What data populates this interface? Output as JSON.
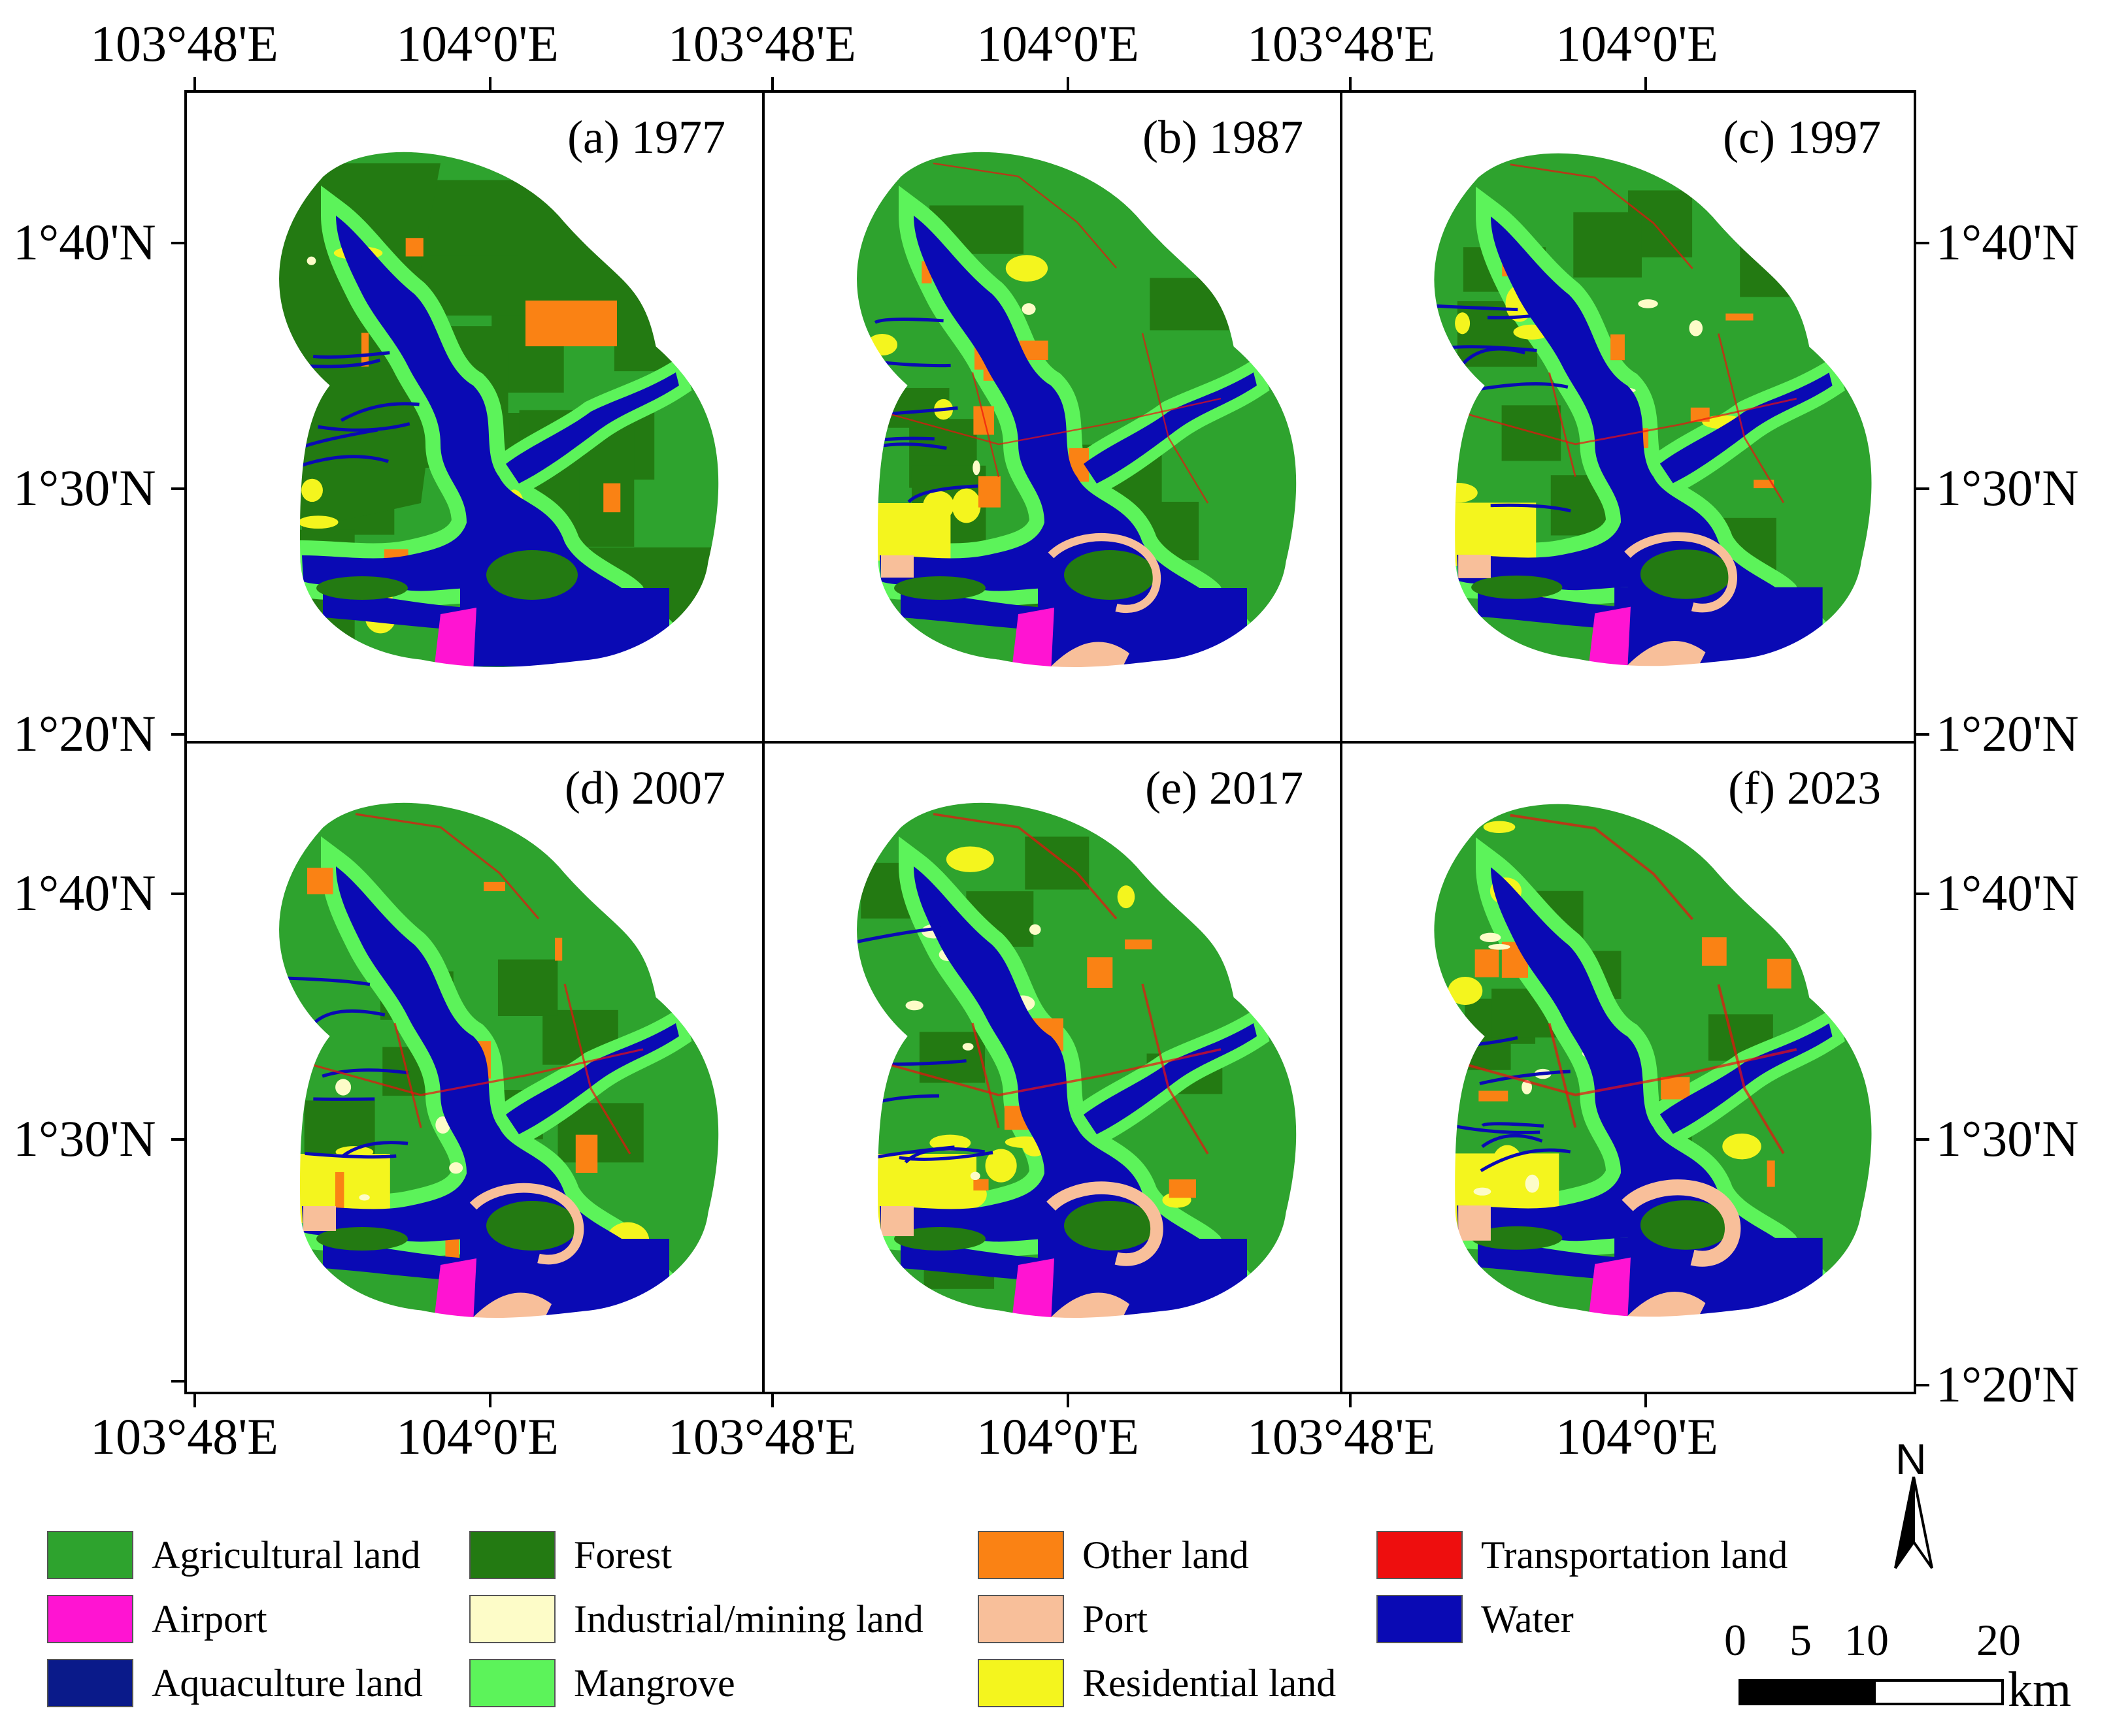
{
  "axes": {
    "top_lon_labels": [
      "103°48'E",
      "104°0'E",
      "103°48'E",
      "104°0'E",
      "103°48'E",
      "104°0'E"
    ],
    "bottom_lon_labels": [
      "103°48'E",
      "104°0'E",
      "103°48'E",
      "104°0'E",
      "103°48'E",
      "104°0'E"
    ],
    "left_lat_labels": [
      "1°40'N",
      "1°30'N",
      "1°20'N",
      "1°40'N",
      "1°30'N"
    ],
    "right_lat_labels": [
      "1°40'N",
      "1°30'N",
      "1°20'N",
      "1°40'N",
      "1°30'N",
      "1°20'N"
    ]
  },
  "panels": [
    {
      "title": "(a) 1977",
      "year": 1977
    },
    {
      "title": "(b) 1987",
      "year": 1987
    },
    {
      "title": "(c) 1997",
      "year": 1997
    },
    {
      "title": "(d) 2007",
      "year": 2007
    },
    {
      "title": "(e) 2017",
      "year": 2017
    },
    {
      "title": "(f) 2023",
      "year": 2023
    }
  ],
  "legend": [
    {
      "label": "Agricultural land",
      "color": "#2ea32e"
    },
    {
      "label": "Airport",
      "color": "#ff14d2"
    },
    {
      "label": "Aquaculture land",
      "color": "#0a1a8a"
    },
    {
      "label": "Forest",
      "color": "#237a12"
    },
    {
      "label": "Industrial/mining land",
      "color": "#fdfcc8"
    },
    {
      "label": "Mangrove",
      "color": "#5cf35a"
    },
    {
      "label": "Other land",
      "color": "#fa8214"
    },
    {
      "label": "Port",
      "color": "#f8bf9a"
    },
    {
      "label": "Residential land",
      "color": "#f4f51e"
    },
    {
      "label": "Transportation land",
      "color": "#ee0e0e"
    },
    {
      "label": "Water",
      "color": "#0a0ab4"
    }
  ],
  "north_arrow": {
    "label": "N"
  },
  "scale_bar": {
    "ticks": [
      "0",
      "5",
      "10",
      "20"
    ],
    "unit": "km"
  }
}
